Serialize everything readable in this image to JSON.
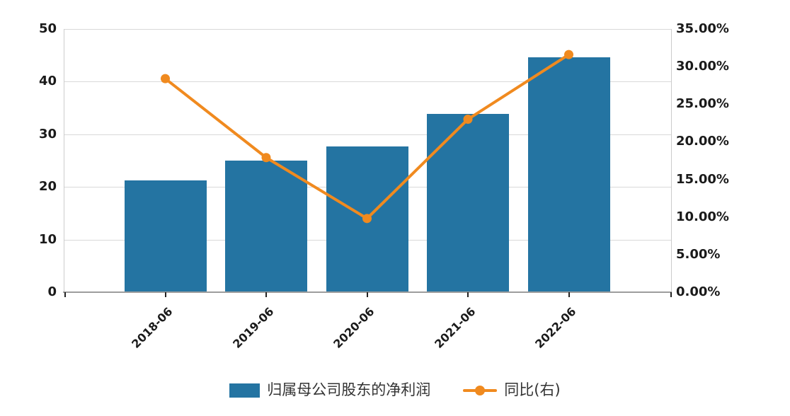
{
  "chart_data": {
    "type": "bar+line",
    "categories": [
      "2018-06",
      "2019-06",
      "2020-06",
      "2021-06",
      "2022-06"
    ],
    "series": [
      {
        "name": "归属母公司股东的净利润",
        "type": "bar",
        "axis": "left",
        "values": [
          21.2,
          25.0,
          27.7,
          33.9,
          44.6
        ],
        "color": "#2474a2"
      },
      {
        "name": "同比(右)",
        "type": "line",
        "axis": "right",
        "values": [
          28.4,
          17.9,
          9.8,
          23.0,
          31.6
        ],
        "unit": "%",
        "color": "#f08a1f"
      }
    ],
    "left_axis": {
      "min": 0,
      "max": 50,
      "tick_step": 10,
      "tick_labels": [
        "0",
        "10",
        "20",
        "30",
        "40",
        "50"
      ]
    },
    "right_axis": {
      "min": 0,
      "max": 35,
      "tick_step": 5,
      "tick_labels": [
        "0.00%",
        "5.00%",
        "10.00%",
        "15.00%",
        "20.00%",
        "25.00%",
        "30.00%",
        "35.00%"
      ]
    },
    "grid": true,
    "legend_position": "bottom",
    "background_color": "#ffffff",
    "gridline_color": "#d9d9d9",
    "axis_text_color": "#1a1a1a"
  }
}
